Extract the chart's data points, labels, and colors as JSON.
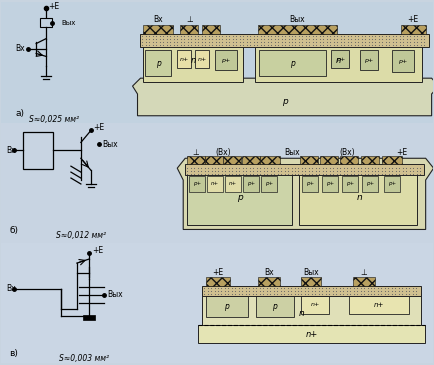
{
  "bg_color": "#c8d4e0",
  "section_bg": [
    "#c2d4e2",
    "#c8d6e4",
    "#ccd8e6"
  ],
  "area_labels": [
    "S≈0,025 мм²",
    "S≈0,012 мм²",
    "S≈0,003 мм²"
  ],
  "top_labels_a": [
    "Вх",
    "⊥",
    "Вых",
    "+E"
  ],
  "top_labels_b": [
    "⊥",
    "(Вх)",
    "Вых",
    "(Вх)",
    "+E"
  ],
  "top_labels_c": [
    "+E",
    "Вх",
    "Вых",
    "⊥"
  ],
  "section_labels": [
    "а)",
    "б)",
    "в)"
  ]
}
